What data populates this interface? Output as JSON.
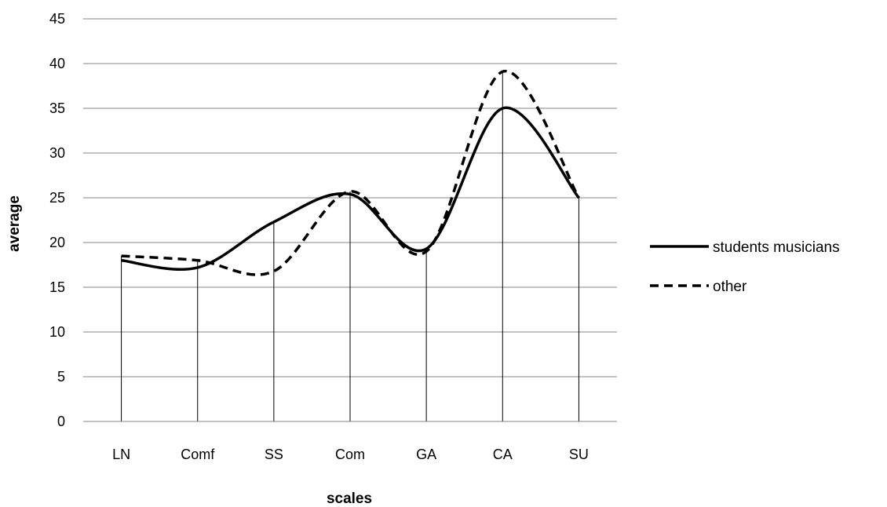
{
  "chart_data": {
    "type": "line",
    "title": "",
    "xlabel": "scales",
    "ylabel": "average",
    "categories": [
      "LN",
      "Comf",
      "SS",
      "Com",
      "GA",
      "CA",
      "SU"
    ],
    "ylim": [
      0,
      45
    ],
    "yticks": [
      0,
      5,
      10,
      15,
      20,
      25,
      30,
      35,
      40,
      45
    ],
    "grid": true,
    "legend_position": "right",
    "smooth": true,
    "series": [
      {
        "name": "students musicians",
        "values": [
          18,
          17.2,
          22.3,
          25.4,
          19.3,
          35,
          25
        ],
        "style": "solid",
        "color": "#000000"
      },
      {
        "name": "other",
        "values": [
          18.5,
          18,
          16.8,
          25.7,
          19,
          39.1,
          25
        ],
        "style": "dashed",
        "color": "#000000"
      }
    ]
  }
}
